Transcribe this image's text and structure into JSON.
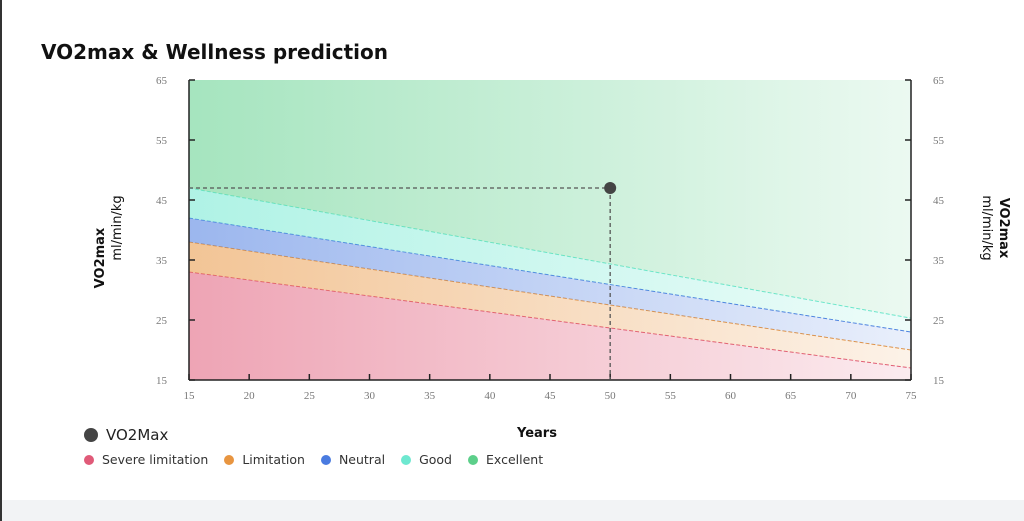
{
  "title": "VO2max & Wellness prediction",
  "chart_data": {
    "type": "area",
    "title": "VO2max & Wellness prediction",
    "xlabel": "Years",
    "ylabel": "VO2max",
    "ylabel_unit": "ml/min/kg",
    "xlim": [
      15,
      75
    ],
    "ylim": [
      15,
      65
    ],
    "x_ticks": [
      "15",
      "20",
      "25",
      "30",
      "35",
      "40",
      "45",
      "50",
      "55",
      "60",
      "65",
      "70",
      "75"
    ],
    "y_ticks": [
      "15",
      "25",
      "35",
      "45",
      "55",
      "65"
    ],
    "bands": [
      {
        "name": "Severe limitation",
        "color": "#e05a78",
        "upper": [
          [
            15,
            33
          ],
          [
            75,
            17
          ]
        ]
      },
      {
        "name": "Limitation",
        "color": "#e89540",
        "upper": [
          [
            15,
            38
          ],
          [
            75,
            20
          ]
        ]
      },
      {
        "name": "Neutral",
        "color": "#4a7be0",
        "upper": [
          [
            15,
            42
          ],
          [
            75,
            23
          ]
        ]
      },
      {
        "name": "Good",
        "color": "#6ee8d0",
        "upper": [
          [
            15,
            47
          ],
          [
            75,
            25.3
          ]
        ]
      },
      {
        "name": "Excellent",
        "color": "#5ccf8a",
        "upper": [
          [
            15,
            65
          ],
          [
            75,
            65
          ]
        ]
      }
    ],
    "point": {
      "name": "VO2Max",
      "x": 50,
      "y": 47,
      "color": "#444444"
    },
    "grid": false,
    "legend_position": "bottom-left"
  }
}
